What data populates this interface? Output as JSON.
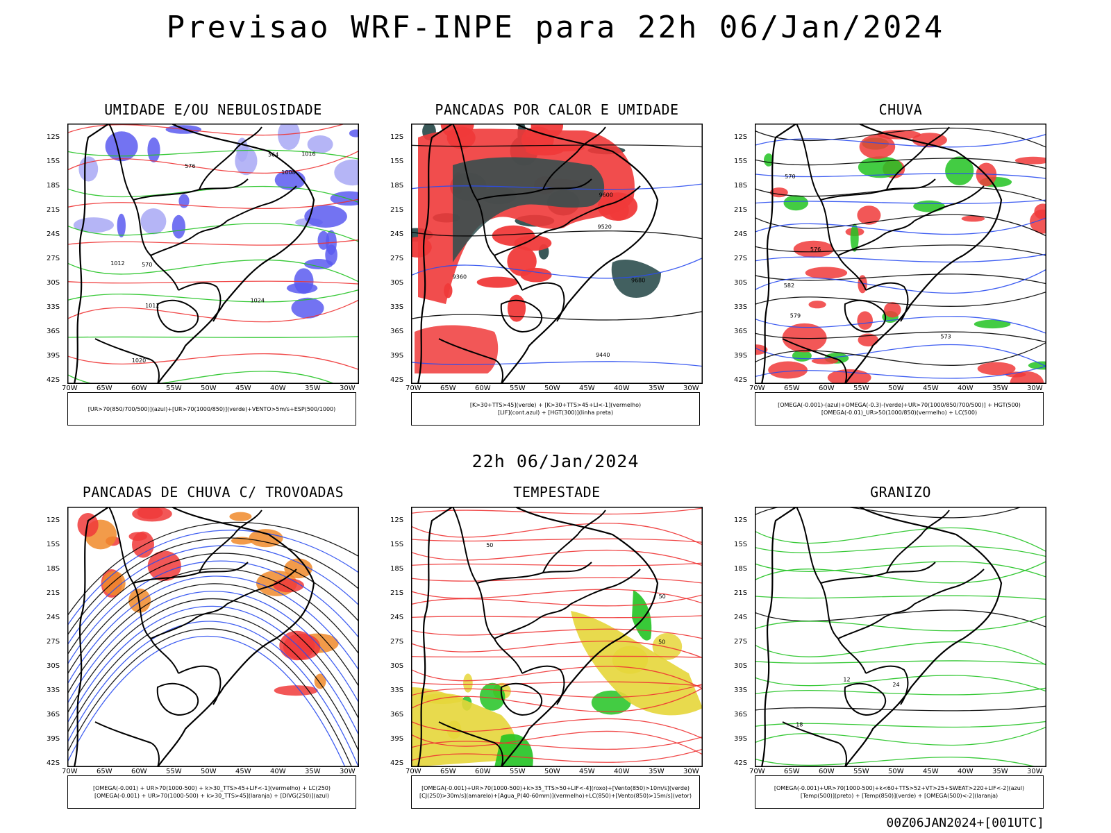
{
  "title": "Previsao WRF-INPE  para 22h 06/Jan/2024",
  "subtitle": "22h 06/Jan/2024",
  "stamp": "00Z06JAN2024+[001UTC]",
  "lat_ticks": [
    "12S",
    "15S",
    "18S",
    "21S",
    "24S",
    "27S",
    "30S",
    "33S",
    "36S",
    "39S",
    "42S"
  ],
  "lon_ticks": [
    "70W",
    "65W",
    "60W",
    "55W",
    "50W",
    "45W",
    "40W",
    "35W",
    "30W"
  ],
  "panels": [
    {
      "title": "UMIDADE E/OU NEBULOSIDADE",
      "legend": [
        "[UR>70(850/700/500)](azul)+[UR>70(1000/850)](verde)+VENTO>5m/s+ESP(500/1000)"
      ],
      "contour_labels": [
        "1012",
        "1012",
        "1008",
        "1016",
        "1020",
        "1024",
        "576",
        "570",
        "564"
      ],
      "colors": {
        "fill1": "#5b5bf0",
        "fill2": "#a8a8f5",
        "line1": "#22c322",
        "line2": "#ee3333"
      }
    },
    {
      "title": "PANCADAS POR CALOR E UMIDADE",
      "legend": [
        "[K>30+TTS>45](verde) + [K>30+TTS>45+LI<-1](vermelho)",
        "[LIF](cont.azul) + [HGT(300)](linha preta)"
      ],
      "contour_labels": [
        "9680",
        "9600",
        "9520",
        "9440",
        "9360"
      ],
      "colors": {
        "fill1": "#f03a3a",
        "fill2": "#2e4f4f",
        "line1": "#2a4cf0",
        "line2": "#000000"
      }
    },
    {
      "title": "CHUVA",
      "legend": [
        "[OMEGA(-0.001)-(azul)+OMEGA(-0.3)-(verde)+UR>70(1000/850/700/500)] + HGT(500)",
        "[OMEGA(-0.01)_UR>50(1000/850)(vermelho) + LC(500)"
      ],
      "contour_labels": [
        "582",
        "579",
        "576",
        "573",
        "570"
      ],
      "colors": {
        "fill1": "#f03a3a",
        "fill2": "#22c322",
        "line1": "#2a4cf0",
        "line2": "#000000"
      }
    },
    {
      "title": "PANCADAS DE CHUVA C/ TROVOADAS",
      "legend": [
        "[OMEGA(-0.001) + UR>70(1000-500) + k>30_TTS>45+LIF<-1](vermelho) + LC(250)",
        "[OMEGA(-0.001) + UR>70(1000-500) + k>30_TTS>45](laranja) + [DIVG(250)](azul)"
      ],
      "contour_labels": [],
      "colors": {
        "fill1": "#f03a3a",
        "fill2": "#f08a2a",
        "line1": "#2a4cf0",
        "line2": "#000000"
      }
    },
    {
      "title": "TEMPESTADE",
      "legend": [
        "[OMEGA(-0.001)+UR>70(1000-500)+k>35_TTS>50+LIF<-4](roxo)+[Vento(850)>10m/s](verde)",
        "[CJ(250)>30m/s](amarelo)+[Agua_P(40-60mm)](vermelho)+LC(850)+[Vento(850)>15m/s](vetor)"
      ],
      "contour_labels": [
        "50",
        "50",
        "50"
      ],
      "colors": {
        "fill1": "#e6d63a",
        "fill2": "#22c322",
        "line1": "#ee3333",
        "line2": "#000000"
      }
    },
    {
      "title": "GRANIZO",
      "legend": [
        "[OMEGA(-0.001)+UR>70(1000-500)+k<60+TTS>52+VT>25+SWEAT>220+LIF<-2](azul)",
        "[Temp(500)](preto) + [Temp(850)](verde) + [OMEGA(500)<-2](laranja)"
      ],
      "contour_labels": [
        "12",
        "18",
        "24"
      ],
      "colors": {
        "fill1": "#f08a2a",
        "fill2": "#2a4cf0",
        "line1": "#22c322",
        "line2": "#000000"
      }
    }
  ]
}
